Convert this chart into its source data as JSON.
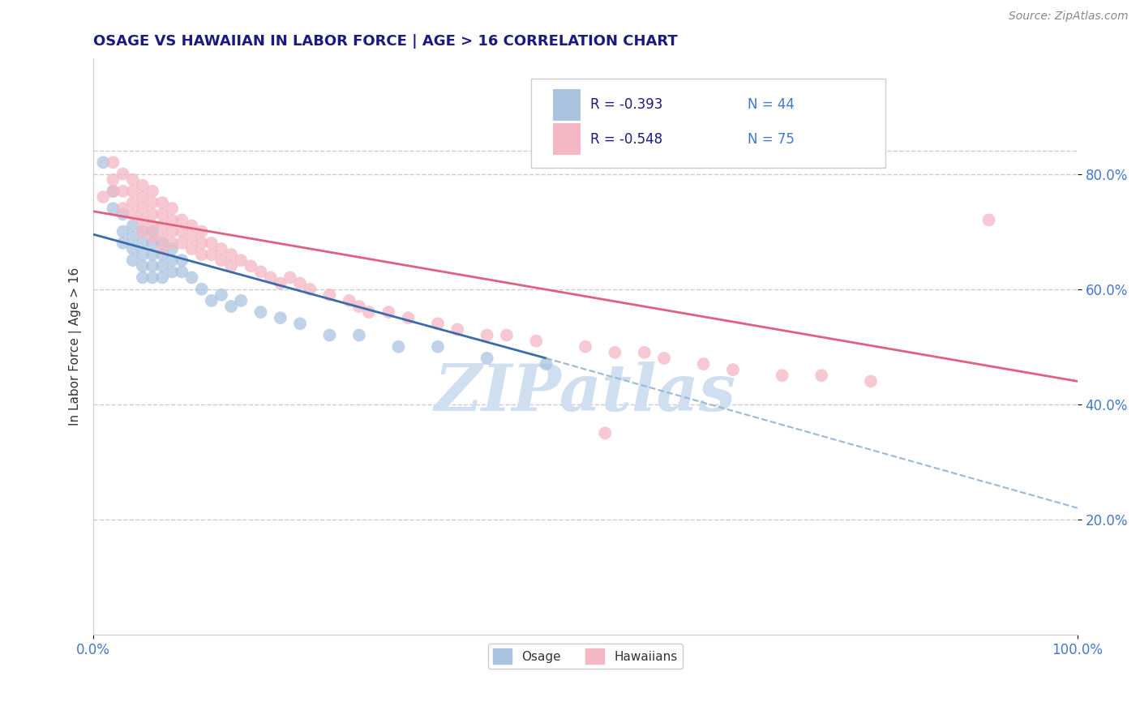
{
  "title": "OSAGE VS HAWAIIAN IN LABOR FORCE | AGE > 16 CORRELATION CHART",
  "source_text": "Source: ZipAtlas.com",
  "ylabel": "In Labor Force | Age > 16",
  "xlim": [
    0.0,
    1.0
  ],
  "ylim": [
    0.0,
    1.0
  ],
  "xtick_labels": [
    "0.0%",
    "100.0%"
  ],
  "ytick_labels": [
    "20.0%",
    "40.0%",
    "60.0%",
    "80.0%"
  ],
  "ytick_positions": [
    0.2,
    0.4,
    0.6,
    0.8
  ],
  "legend_r1": "R = -0.393",
  "legend_n1": "N = 44",
  "legend_r2": "R = -0.548",
  "legend_n2": "N = 75",
  "color_osage": "#aac4e0",
  "color_hawaiian": "#f4b8c4",
  "color_line_osage": "#3a6baa",
  "color_line_hawaiian": "#e06080",
  "color_line_ext": "#9ab8d8",
  "title_color": "#1a1a80",
  "axis_label_color": "#333333",
  "tick_label_color": "#4477cc",
  "watermark_color": "#d0dff0",
  "background_color": "#ffffff",
  "grid_color": "#cccccc",
  "osage_x": [
    0.01,
    0.02,
    0.02,
    0.03,
    0.03,
    0.03,
    0.04,
    0.04,
    0.04,
    0.04,
    0.05,
    0.05,
    0.05,
    0.05,
    0.05,
    0.06,
    0.06,
    0.06,
    0.06,
    0.06,
    0.07,
    0.07,
    0.07,
    0.07,
    0.08,
    0.08,
    0.08,
    0.09,
    0.09,
    0.1,
    0.11,
    0.12,
    0.13,
    0.14,
    0.15,
    0.17,
    0.19,
    0.21,
    0.24,
    0.27,
    0.31,
    0.35,
    0.4,
    0.46
  ],
  "osage_y": [
    0.82,
    0.77,
    0.74,
    0.73,
    0.7,
    0.68,
    0.71,
    0.69,
    0.67,
    0.65,
    0.7,
    0.68,
    0.66,
    0.64,
    0.62,
    0.7,
    0.68,
    0.66,
    0.64,
    0.62,
    0.68,
    0.66,
    0.64,
    0.62,
    0.67,
    0.65,
    0.63,
    0.65,
    0.63,
    0.62,
    0.6,
    0.58,
    0.59,
    0.57,
    0.58,
    0.56,
    0.55,
    0.54,
    0.52,
    0.52,
    0.5,
    0.5,
    0.48,
    0.47
  ],
  "hawaiian_x": [
    0.01,
    0.02,
    0.02,
    0.02,
    0.03,
    0.03,
    0.03,
    0.04,
    0.04,
    0.04,
    0.04,
    0.05,
    0.05,
    0.05,
    0.05,
    0.05,
    0.06,
    0.06,
    0.06,
    0.06,
    0.06,
    0.07,
    0.07,
    0.07,
    0.07,
    0.07,
    0.08,
    0.08,
    0.08,
    0.08,
    0.09,
    0.09,
    0.09,
    0.1,
    0.1,
    0.1,
    0.11,
    0.11,
    0.11,
    0.12,
    0.12,
    0.13,
    0.13,
    0.14,
    0.14,
    0.15,
    0.16,
    0.17,
    0.18,
    0.19,
    0.2,
    0.21,
    0.22,
    0.24,
    0.26,
    0.27,
    0.28,
    0.3,
    0.32,
    0.35,
    0.37,
    0.4,
    0.42,
    0.45,
    0.5,
    0.53,
    0.56,
    0.58,
    0.62,
    0.65,
    0.7,
    0.74,
    0.79,
    0.91,
    0.52
  ],
  "hawaiian_y": [
    0.76,
    0.82,
    0.79,
    0.77,
    0.8,
    0.77,
    0.74,
    0.79,
    0.77,
    0.75,
    0.73,
    0.78,
    0.76,
    0.74,
    0.72,
    0.7,
    0.77,
    0.75,
    0.73,
    0.71,
    0.69,
    0.75,
    0.73,
    0.71,
    0.69,
    0.67,
    0.74,
    0.72,
    0.7,
    0.68,
    0.72,
    0.7,
    0.68,
    0.71,
    0.69,
    0.67,
    0.7,
    0.68,
    0.66,
    0.68,
    0.66,
    0.67,
    0.65,
    0.66,
    0.64,
    0.65,
    0.64,
    0.63,
    0.62,
    0.61,
    0.62,
    0.61,
    0.6,
    0.59,
    0.58,
    0.57,
    0.56,
    0.56,
    0.55,
    0.54,
    0.53,
    0.52,
    0.52,
    0.51,
    0.5,
    0.49,
    0.49,
    0.48,
    0.47,
    0.46,
    0.45,
    0.45,
    0.44,
    0.72,
    0.35
  ],
  "osage_trend_x0": 0.0,
  "osage_trend_y0": 0.695,
  "osage_trend_x1": 0.46,
  "osage_trend_y1": 0.48,
  "osage_trend_xe": 1.0,
  "osage_trend_ye": 0.22,
  "hawaiian_trend_x0": 0.0,
  "hawaiian_trend_y0": 0.735,
  "hawaiian_trend_x1": 1.0,
  "hawaiian_trend_y1": 0.44
}
